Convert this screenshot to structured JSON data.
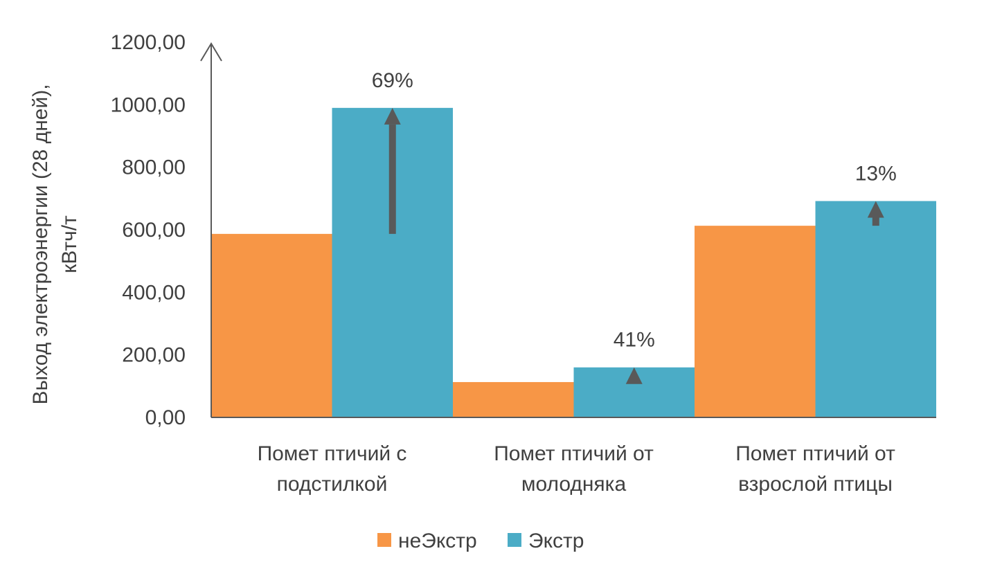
{
  "chart_data": {
    "type": "bar",
    "title": "",
    "xlabel": "",
    "ylabel_lines": [
      "Выход электроэнергии (28 дней),",
      "кВтч/т"
    ],
    "categories": [
      [
        "Помет птичий с",
        "подстилкой"
      ],
      [
        "Помет птичий от",
        "молодняка"
      ],
      [
        "Помет птичий от",
        "взрослой птицы"
      ]
    ],
    "series": [
      {
        "name": "неЭкстр",
        "values": [
          587,
          113,
          613
        ],
        "color": "#F79646"
      },
      {
        "name": "Экстр",
        "values": [
          990,
          160,
          692
        ],
        "color": "#4BACC6"
      }
    ],
    "increase_labels": [
      "69%",
      "41%",
      "13%"
    ],
    "arrow_color": "#595959",
    "ylim": [
      0,
      1200
    ],
    "yticks": [
      "0,00",
      "200,00",
      "400,00",
      "600,00",
      "800,00",
      "1000,00",
      "1200,00"
    ],
    "ytick_values": [
      0,
      200,
      400,
      600,
      800,
      1000,
      1200
    ],
    "grid": false,
    "legend_position": "bottom"
  }
}
